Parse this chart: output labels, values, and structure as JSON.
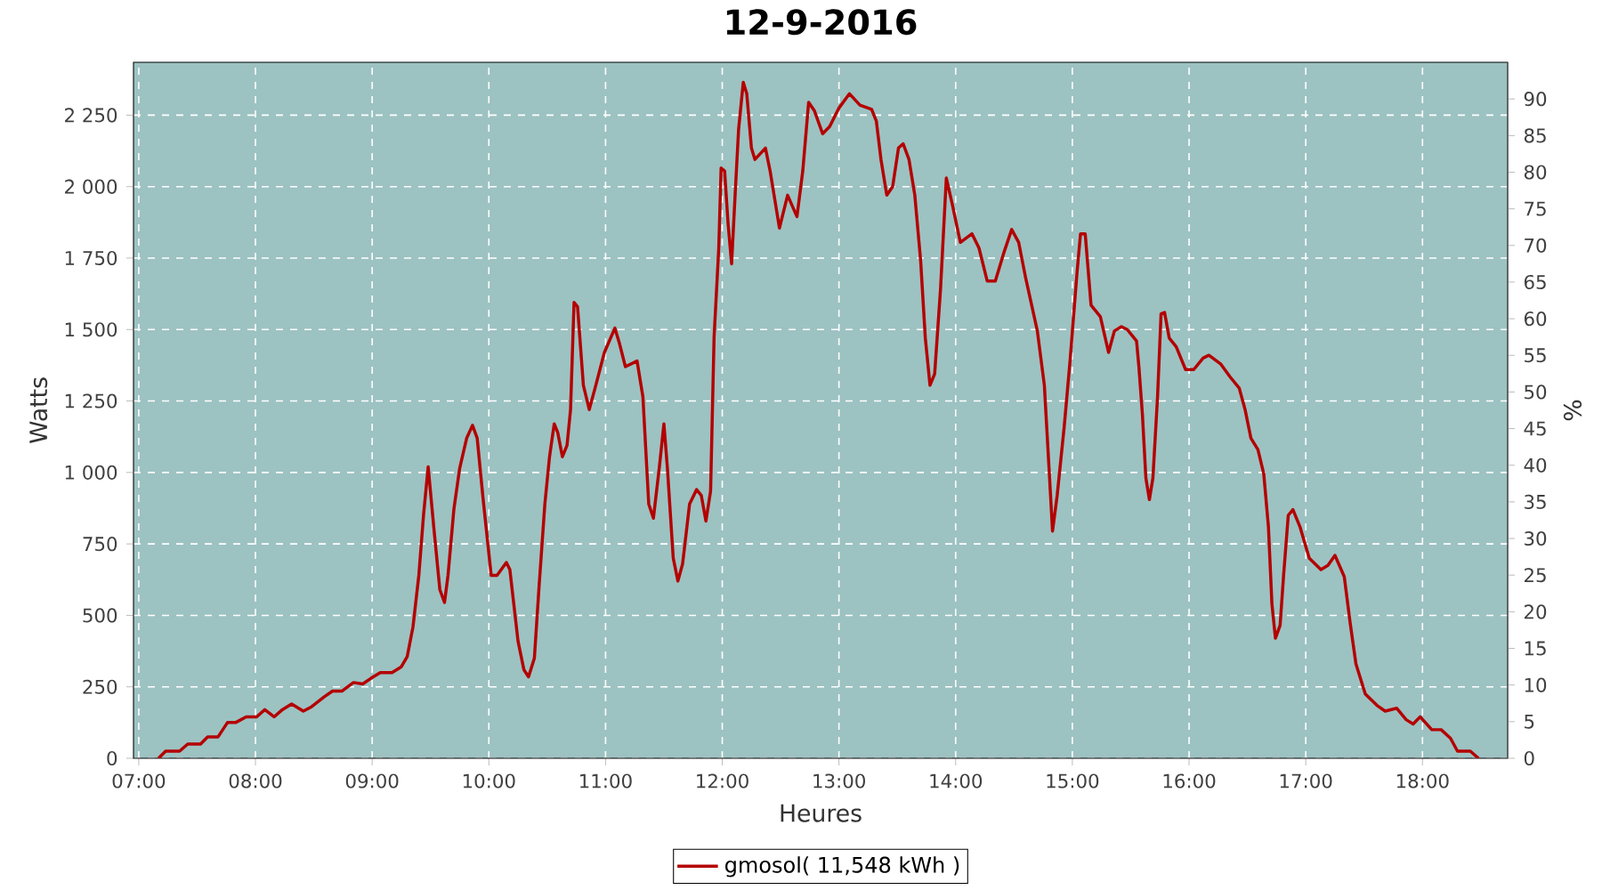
{
  "chart_data": {
    "type": "line",
    "title": "12-9-2016",
    "xlabel": "Heures",
    "ylabel": "Watts",
    "y2label": "%",
    "xlim": [
      6.955,
      18.73
    ],
    "xticks": [
      {
        "value": 7,
        "label": "07:00"
      },
      {
        "value": 8,
        "label": "08:00"
      },
      {
        "value": 9,
        "label": "09:00"
      },
      {
        "value": 10,
        "label": "10:00"
      },
      {
        "value": 11,
        "label": "11:00"
      },
      {
        "value": 12,
        "label": "12:00"
      },
      {
        "value": 13,
        "label": "13:00"
      },
      {
        "value": 14,
        "label": "14:00"
      },
      {
        "value": 15,
        "label": "15:00"
      },
      {
        "value": 16,
        "label": "16:00"
      },
      {
        "value": 17,
        "label": "17:00"
      },
      {
        "value": 18,
        "label": "18:00"
      }
    ],
    "ylim": [
      0,
      2435
    ],
    "yticks": [
      0,
      250,
      500,
      750,
      {
        "value": 1000,
        "label": "1 000"
      },
      {
        "value": 1250,
        "label": "1 250"
      },
      {
        "value": 1500,
        "label": "1 500"
      },
      {
        "value": 1750,
        "label": "1 750"
      },
      {
        "value": 2000,
        "label": "2 000"
      },
      {
        "value": 2250,
        "label": "2 250"
      }
    ],
    "y2lim": [
      0,
      95
    ],
    "y2ticks": [
      0,
      5,
      10,
      15,
      20,
      25,
      30,
      35,
      40,
      45,
      50,
      55,
      60,
      65,
      70,
      75,
      80,
      85,
      90
    ],
    "grid": true,
    "legend": "bottom",
    "marker": "none",
    "line_style": "solid",
    "series": [
      {
        "name": "gmosol( 11,548 kWh )",
        "color": "#b40000",
        "x": [
          7.17,
          7.23,
          7.35,
          7.42,
          7.53,
          7.59,
          7.68,
          7.76,
          7.83,
          7.92,
          8.01,
          8.08,
          8.16,
          8.23,
          8.31,
          8.41,
          8.48,
          8.59,
          8.66,
          8.74,
          8.84,
          8.92,
          8.99,
          9.07,
          9.17,
          9.25,
          9.3,
          9.35,
          9.4,
          9.44,
          9.48,
          9.53,
          9.58,
          9.62,
          9.65,
          9.7,
          9.75,
          9.81,
          9.86,
          9.9,
          9.95,
          10.02,
          10.07,
          10.15,
          10.18,
          10.25,
          10.3,
          10.34,
          10.39,
          10.43,
          10.48,
          10.52,
          10.56,
          10.59,
          10.63,
          10.67,
          10.7,
          10.73,
          10.76,
          10.81,
          10.86,
          10.91,
          10.99,
          11.08,
          11.12,
          11.17,
          11.27,
          11.32,
          11.37,
          11.41,
          11.46,
          11.5,
          11.53,
          11.58,
          11.62,
          11.66,
          11.72,
          11.78,
          11.82,
          11.86,
          11.9,
          11.93,
          11.97,
          11.99,
          12.02,
          12.05,
          12.08,
          12.11,
          12.14,
          12.18,
          12.21,
          12.25,
          12.28,
          12.37,
          12.41,
          12.49,
          12.56,
          12.64,
          12.69,
          12.74,
          12.79,
          12.86,
          12.92,
          13.0,
          13.09,
          13.18,
          13.28,
          13.32,
          13.36,
          13.41,
          13.46,
          13.51,
          13.55,
          13.6,
          13.65,
          13.7,
          13.74,
          13.78,
          13.82,
          13.87,
          13.92,
          13.97,
          14.04,
          14.14,
          14.2,
          14.27,
          14.34,
          14.41,
          14.48,
          14.54,
          14.6,
          14.7,
          14.76,
          14.8,
          14.83,
          14.87,
          14.93,
          14.98,
          15.04,
          15.07,
          15.11,
          15.16,
          15.24,
          15.31,
          15.36,
          15.42,
          15.47,
          15.55,
          15.57,
          15.6,
          15.63,
          15.66,
          15.69,
          15.73,
          15.76,
          15.79,
          15.83,
          15.89,
          15.97,
          16.04,
          16.12,
          16.17,
          16.27,
          16.35,
          16.43,
          16.48,
          16.53,
          16.59,
          16.64,
          16.68,
          16.71,
          16.74,
          16.78,
          16.81,
          16.85,
          16.89,
          16.95,
          17.03,
          17.13,
          17.19,
          17.25,
          17.33,
          17.38,
          17.43,
          17.51,
          17.61,
          17.68,
          17.78,
          17.86,
          17.92,
          17.98,
          18.08,
          18.16,
          18.24,
          18.3,
          18.41,
          18.48
        ],
        "values": [
          0,
          25,
          25,
          50,
          50,
          75,
          75,
          125,
          125,
          145,
          145,
          170,
          145,
          170,
          190,
          165,
          180,
          215,
          235,
          235,
          265,
          260,
          280,
          300,
          300,
          320,
          355,
          460,
          640,
          850,
          1020,
          800,
          590,
          545,
          640,
          870,
          1015,
          1120,
          1165,
          1120,
          910,
          640,
          640,
          685,
          660,
          410,
          310,
          285,
          350,
          600,
          890,
          1055,
          1170,
          1140,
          1055,
          1095,
          1220,
          1595,
          1580,
          1305,
          1220,
          1295,
          1420,
          1505,
          1450,
          1370,
          1390,
          1265,
          890,
          840,
          1015,
          1170,
          1015,
          700,
          620,
          680,
          890,
          940,
          920,
          830,
          935,
          1475,
          1785,
          2065,
          2055,
          1870,
          1730,
          1970,
          2200,
          2365,
          2325,
          2135,
          2095,
          2135,
          2055,
          1855,
          1970,
          1895,
          2055,
          2295,
          2265,
          2185,
          2210,
          2275,
          2325,
          2285,
          2270,
          2230,
          2095,
          1970,
          2000,
          2135,
          2150,
          2095,
          1970,
          1740,
          1470,
          1305,
          1345,
          1640,
          2030,
          1940,
          1805,
          1835,
          1785,
          1670,
          1670,
          1765,
          1850,
          1805,
          1680,
          1495,
          1305,
          1015,
          795,
          920,
          1160,
          1390,
          1700,
          1835,
          1835,
          1585,
          1545,
          1420,
          1495,
          1510,
          1500,
          1460,
          1370,
          1205,
          980,
          905,
          980,
          1265,
          1555,
          1560,
          1470,
          1440,
          1360,
          1360,
          1400,
          1410,
          1380,
          1335,
          1295,
          1220,
          1120,
          1080,
          995,
          810,
          540,
          420,
          465,
          640,
          850,
          870,
          810,
          700,
          660,
          675,
          710,
          635,
          475,
          330,
          225,
          185,
          165,
          175,
          135,
          120,
          145,
          100,
          100,
          70,
          25,
          25,
          0
        ]
      }
    ]
  }
}
